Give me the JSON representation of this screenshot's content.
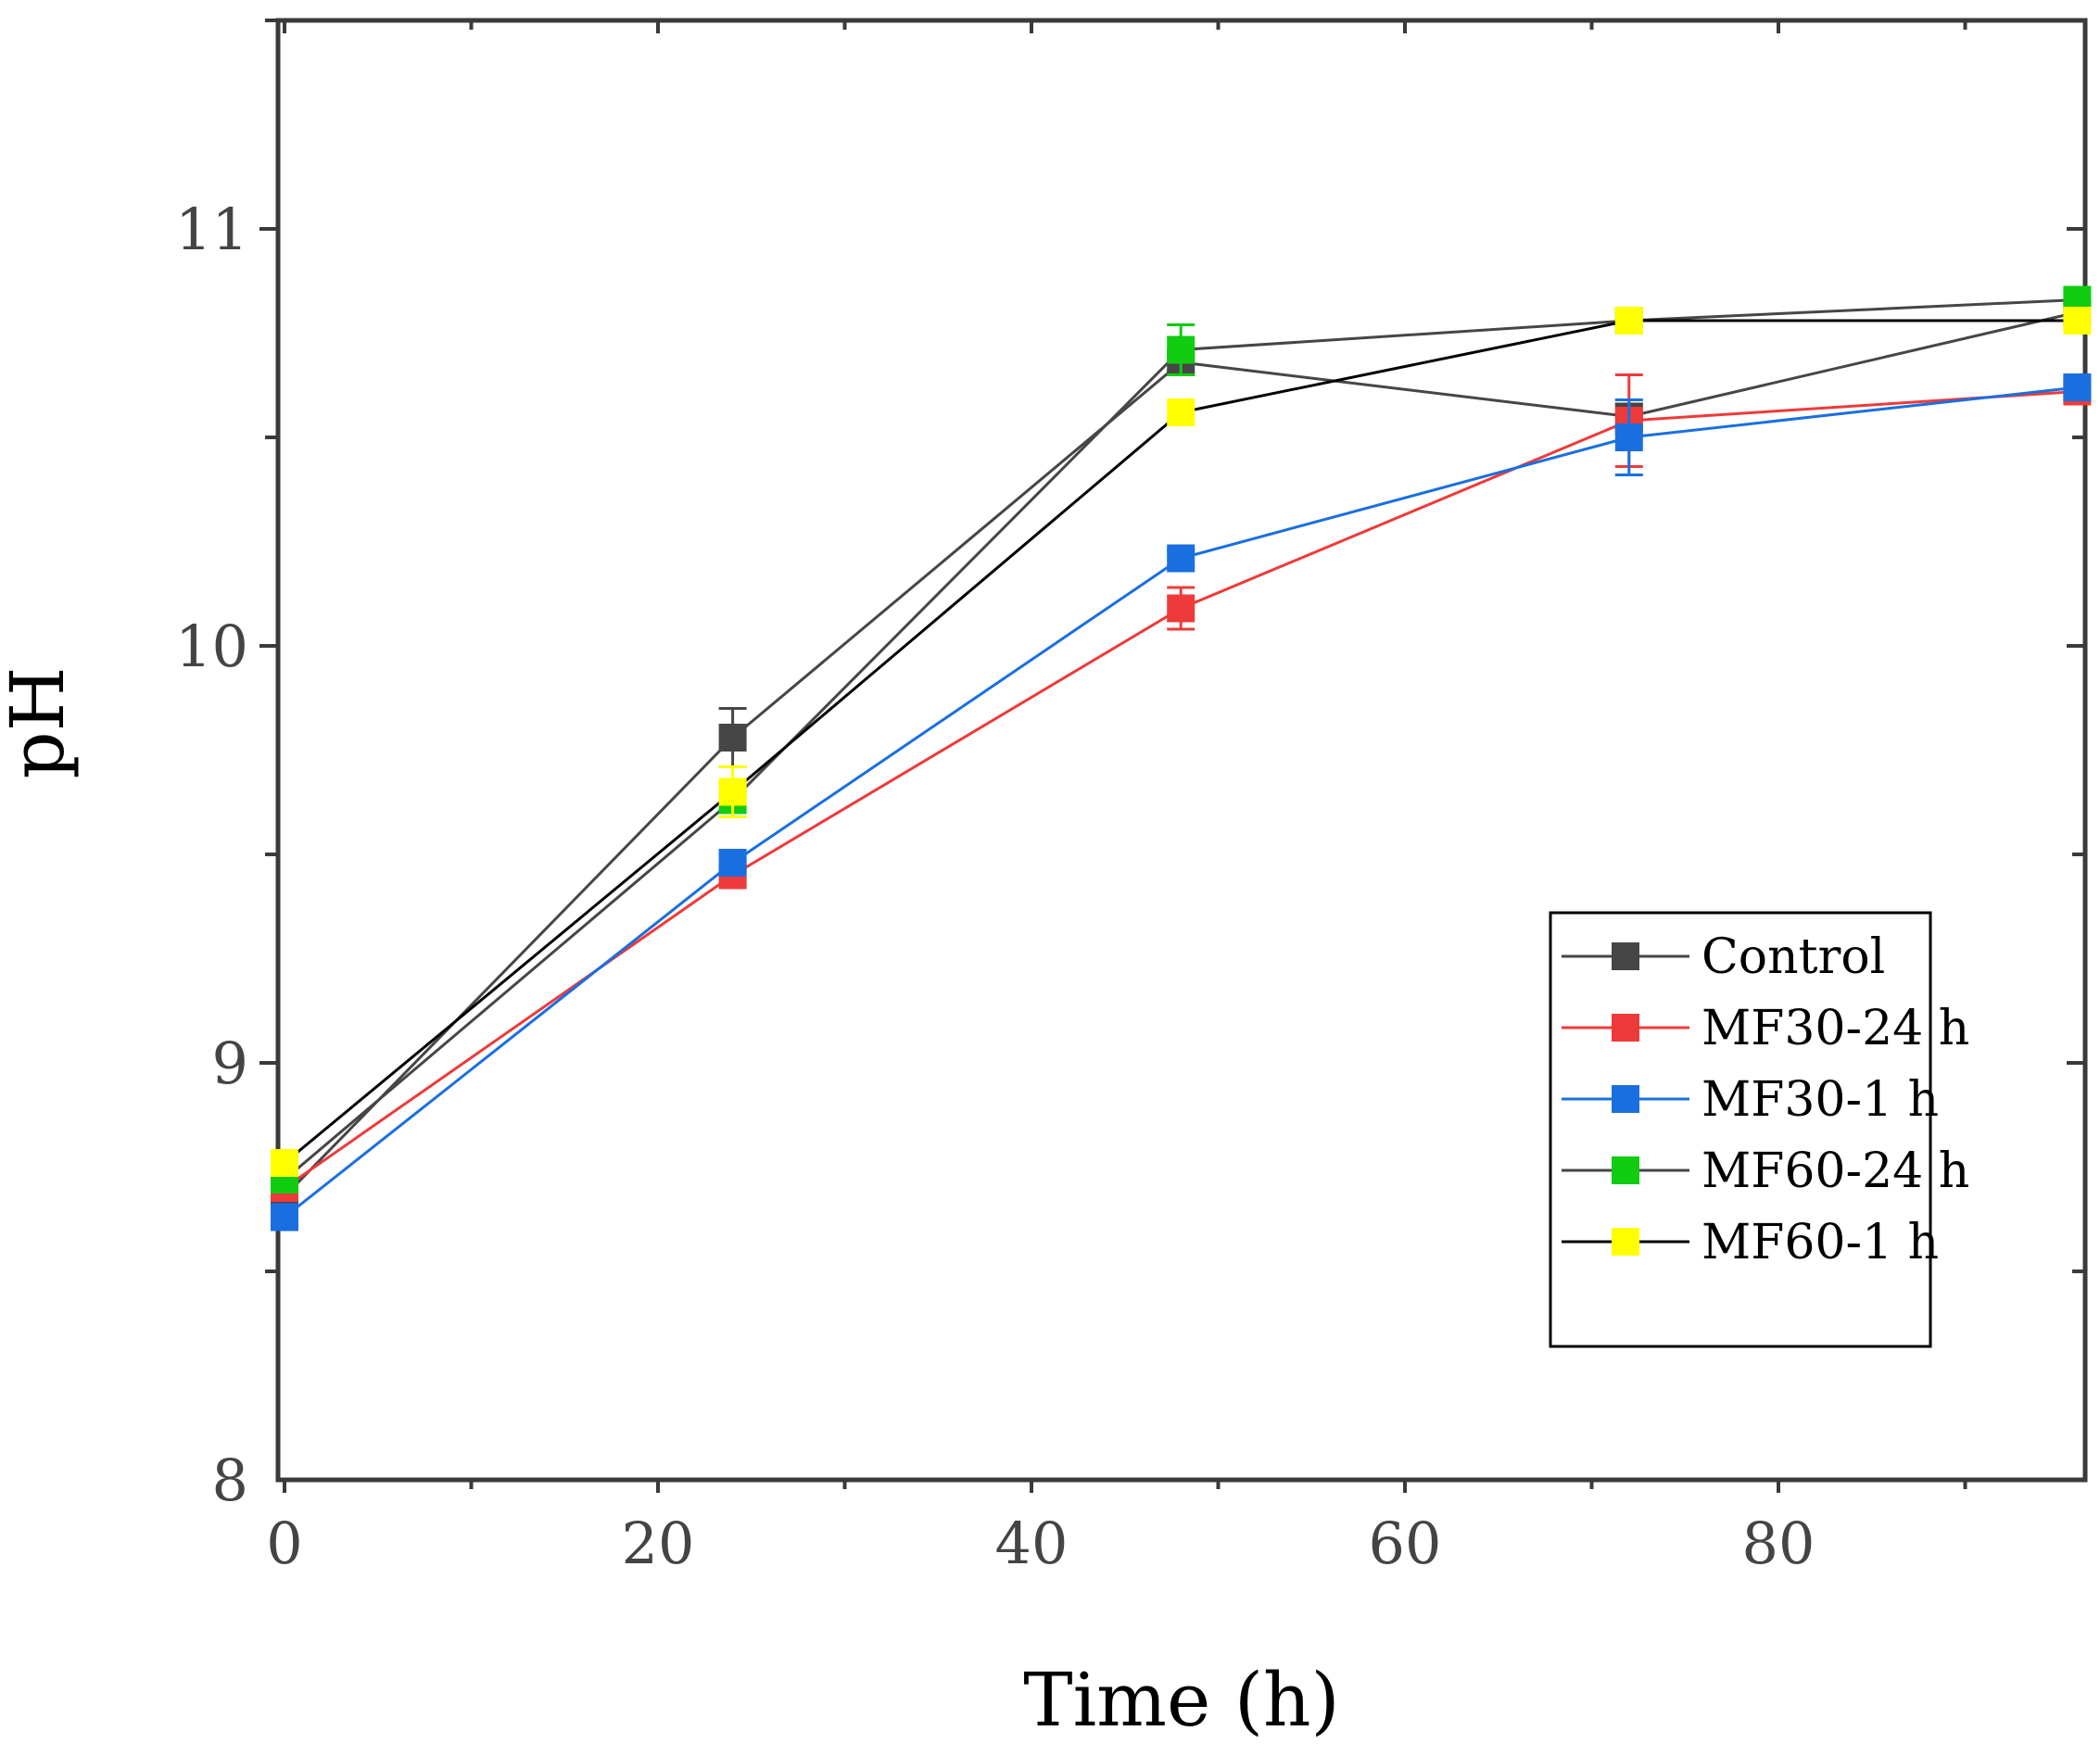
{
  "chart_data": {
    "type": "line",
    "title": "",
    "xlabel": "Time (h)",
    "ylabel": "pH",
    "xlim": [
      -1,
      96
    ],
    "ylim": [
      8,
      11.5
    ],
    "xticks": [
      0,
      20,
      40,
      60,
      80
    ],
    "yticks": [
      8,
      9,
      10,
      11
    ],
    "legend_position": "lower-right",
    "x": [
      0,
      24,
      48,
      72,
      96
    ],
    "series": [
      {
        "name": "Control",
        "color": "#464646",
        "values": [
          8.68,
          9.78,
          10.68,
          10.55,
          10.8
        ],
        "errors": [
          0.03,
          0.07,
          0.02,
          0.03,
          0.02
        ]
      },
      {
        "name": "MF30-24 h",
        "color": "#ee3a3a",
        "values": [
          8.7,
          9.45,
          10.09,
          10.54,
          10.61
        ],
        "errors": [
          0.02,
          0.02,
          0.05,
          0.11,
          0.02
        ]
      },
      {
        "name": "MF30-1 h",
        "color": "#1a6fe0",
        "values": [
          8.63,
          9.48,
          10.21,
          10.5,
          10.62
        ],
        "errors": [
          0.02,
          0.02,
          0.02,
          0.09,
          0.02
        ]
      },
      {
        "name": "MF60-24 h",
        "color": "#11cc11",
        "values": [
          8.72,
          9.63,
          10.71,
          10.78,
          10.83
        ],
        "errors": [
          0.02,
          0.04,
          0.06,
          0.02,
          0.02
        ]
      },
      {
        "name": "MF60-1 h",
        "color": "#ffff00",
        "values": [
          8.76,
          9.65,
          10.56,
          10.78,
          10.78
        ],
        "errors": [
          0.02,
          0.06,
          0.02,
          0.02,
          0.02
        ]
      }
    ],
    "line_colors": [
      "#464646",
      "#ee3a3a",
      "#1a6fe0",
      "#464646",
      "#000000"
    ]
  }
}
